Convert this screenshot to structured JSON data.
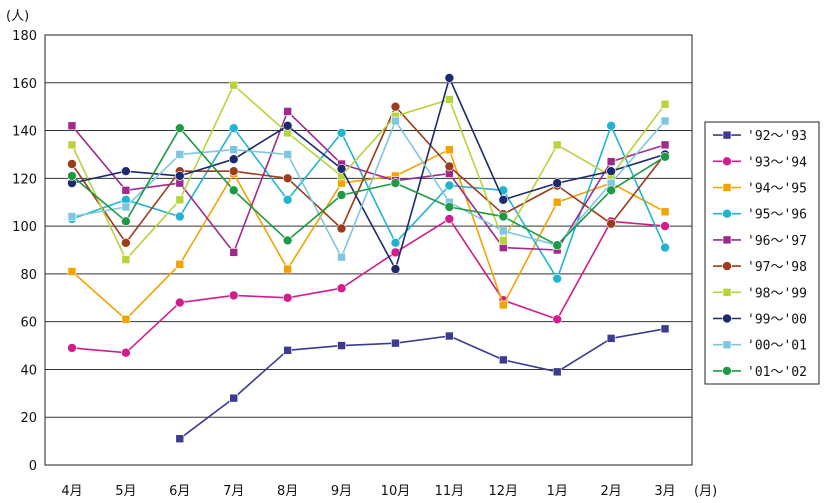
{
  "chart_data": {
    "type": "line",
    "y_unit": "(人)",
    "x_unit": "(月)",
    "categories": [
      "4月",
      "5月",
      "6月",
      "7月",
      "8月",
      "9月",
      "10月",
      "11月",
      "12月",
      "1月",
      "2月",
      "3月"
    ],
    "ylim": [
      0,
      180
    ],
    "yticks": [
      0,
      20,
      40,
      60,
      80,
      100,
      120,
      140,
      160,
      180
    ],
    "grid": true,
    "legend_position": "right",
    "series": [
      {
        "name": "'92～'93",
        "color": "#3b3b8f",
        "marker": "square",
        "values": [
          null,
          null,
          11,
          28,
          48,
          50,
          51,
          54,
          44,
          39,
          53,
          57
        ]
      },
      {
        "name": "'93～'94",
        "color": "#d21d8c",
        "marker": "circle",
        "values": [
          49,
          47,
          68,
          71,
          70,
          74,
          89,
          103,
          69,
          61,
          102,
          100
        ]
      },
      {
        "name": "'94～'95",
        "color": "#f2a300",
        "marker": "square",
        "values": [
          81,
          61,
          84,
          122,
          82,
          118,
          121,
          132,
          67,
          110,
          118,
          106
        ]
      },
      {
        "name": "'95～'96",
        "color": "#1fb5d0",
        "marker": "circle",
        "values": [
          103,
          111,
          104,
          141,
          111,
          139,
          93,
          117,
          115,
          78,
          142,
          91
        ]
      },
      {
        "name": "'96～'97",
        "color": "#a02a8c",
        "marker": "square",
        "values": [
          142,
          115,
          118,
          89,
          148,
          126,
          119,
          122,
          91,
          90,
          127,
          134
        ]
      },
      {
        "name": "'97～'98",
        "color": "#9c3b1e",
        "marker": "circle",
        "values": [
          126,
          93,
          123,
          123,
          120,
          99,
          150,
          125,
          105,
          117,
          101,
          130
        ]
      },
      {
        "name": "'98～'99",
        "color": "#b7d43a",
        "marker": "square",
        "values": [
          134,
          86,
          111,
          159,
          139,
          121,
          146,
          153,
          94,
          134,
          121,
          151
        ]
      },
      {
        "name": "'99～'00",
        "color": "#1d2a6b",
        "marker": "circle",
        "values": [
          118,
          123,
          121,
          128,
          142,
          124,
          82,
          162,
          111,
          118,
          123,
          130
        ]
      },
      {
        "name": "'00～'01",
        "color": "#7fc6e0",
        "marker": "square",
        "values": [
          104,
          108,
          130,
          132,
          130,
          87,
          144,
          110,
          98,
          92,
          118,
          144
        ]
      },
      {
        "name": "'01～'02",
        "color": "#1e9a45",
        "marker": "circle",
        "values": [
          121,
          102,
          141,
          115,
          94,
          113,
          118,
          108,
          104,
          92,
          115,
          129
        ]
      }
    ]
  }
}
